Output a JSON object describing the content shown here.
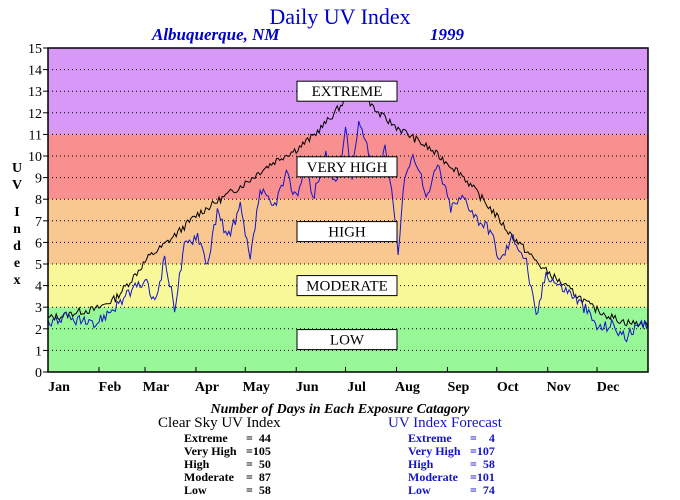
{
  "header": {
    "title": "Daily UV Index",
    "location": "Albuquerque, NM",
    "year": "1999"
  },
  "colors": {
    "extreme": "#d898f8",
    "very_high": "#f89090",
    "high": "#f8c890",
    "moderate": "#f8f898",
    "low": "#98f898",
    "clear_sky_line": "#000000",
    "forecast_line": "#1414c8",
    "title": "#0000cc"
  },
  "chart_data": {
    "type": "line",
    "title": "Daily UV Index",
    "ylabel": "UV Index",
    "ylim": [
      0,
      15
    ],
    "yticks": [
      "0",
      "1",
      "2",
      "3",
      "4",
      "5",
      "6",
      "7",
      "8",
      "9",
      "10",
      "11",
      "12",
      "13",
      "14",
      "15"
    ],
    "xlim": [
      1,
      366
    ],
    "month_ticks": [
      "Jan",
      "Feb",
      "Mar",
      "Apr",
      "May",
      "Jun",
      "Jul",
      "Aug",
      "Sep",
      "Oct",
      "Nov",
      "Dec"
    ],
    "grid": "horizontal dotted",
    "bands": [
      {
        "label": "LOW",
        "from": 0,
        "to": 3,
        "color": "#98f898"
      },
      {
        "label": "MODERATE",
        "from": 3,
        "to": 5,
        "color": "#f8f898"
      },
      {
        "label": "HIGH",
        "from": 5,
        "to": 8,
        "color": "#f8c890"
      },
      {
        "label": "VERY HIGH",
        "from": 8,
        "to": 11,
        "color": "#f89090"
      },
      {
        "label": "EXTREME",
        "from": 11,
        "to": 15,
        "color": "#d898f8"
      }
    ],
    "series": [
      {
        "name": "Clear Sky UV Index",
        "color": "#000000",
        "points": [
          [
            1,
            2.5
          ],
          [
            10,
            2.6
          ],
          [
            20,
            2.8
          ],
          [
            30,
            2.9
          ],
          [
            42,
            3.4
          ],
          [
            52,
            4.3
          ],
          [
            62,
            5.3
          ],
          [
            72,
            5.9
          ],
          [
            82,
            6.6
          ],
          [
            92,
            7.3
          ],
          [
            102,
            7.8
          ],
          [
            112,
            8.3
          ],
          [
            122,
            8.8
          ],
          [
            132,
            9.4
          ],
          [
            142,
            9.9
          ],
          [
            152,
            10.3
          ],
          [
            162,
            10.9
          ],
          [
            172,
            11.7
          ],
          [
            182,
            12.6
          ],
          [
            187,
            13.2
          ],
          [
            192,
            13.1
          ],
          [
            200,
            12.1
          ],
          [
            210,
            11.5
          ],
          [
            220,
            11.0
          ],
          [
            232,
            10.4
          ],
          [
            242,
            9.8
          ],
          [
            252,
            9.2
          ],
          [
            262,
            8.3
          ],
          [
            272,
            7.4
          ],
          [
            282,
            6.4
          ],
          [
            292,
            5.6
          ],
          [
            302,
            4.8
          ],
          [
            312,
            4.2
          ],
          [
            322,
            3.6
          ],
          [
            332,
            3.0
          ],
          [
            342,
            2.6
          ],
          [
            352,
            2.3
          ],
          [
            365,
            2.2
          ]
        ]
      },
      {
        "name": "UV Index Forecast",
        "color": "#1414c8",
        "points": [
          [
            1,
            2.3
          ],
          [
            10,
            2.5
          ],
          [
            20,
            2.4
          ],
          [
            28,
            2.1
          ],
          [
            50,
            3.6
          ],
          [
            60,
            4.2
          ],
          [
            66,
            3.2
          ],
          [
            72,
            5.2
          ],
          [
            78,
            3.0
          ],
          [
            84,
            5.8
          ],
          [
            92,
            6.4
          ],
          [
            98,
            5.0
          ],
          [
            104,
            7.4
          ],
          [
            110,
            6.2
          ],
          [
            118,
            7.6
          ],
          [
            124,
            5.1
          ],
          [
            130,
            8.4
          ],
          [
            138,
            7.6
          ],
          [
            146,
            9.1
          ],
          [
            152,
            8.1
          ],
          [
            158,
            9.6
          ],
          [
            162,
            8.0
          ],
          [
            170,
            10.1
          ],
          [
            176,
            8.6
          ],
          [
            182,
            11.2
          ],
          [
            186,
            9.1
          ],
          [
            190,
            11.6
          ],
          [
            196,
            10.1
          ],
          [
            202,
            9.1
          ],
          [
            206,
            10.6
          ],
          [
            210,
            8.6
          ],
          [
            214,
            5.6
          ],
          [
            218,
            9.1
          ],
          [
            224,
            10.0
          ],
          [
            232,
            8.1
          ],
          [
            238,
            9.6
          ],
          [
            246,
            7.6
          ],
          [
            254,
            8.1
          ],
          [
            262,
            7.1
          ],
          [
            270,
            6.6
          ],
          [
            276,
            5.1
          ],
          [
            284,
            6.3
          ],
          [
            292,
            5.1
          ],
          [
            298,
            2.5
          ],
          [
            304,
            4.6
          ],
          [
            312,
            4.0
          ],
          [
            320,
            3.6
          ],
          [
            328,
            2.9
          ],
          [
            336,
            2.0
          ],
          [
            344,
            2.2
          ],
          [
            352,
            1.6
          ],
          [
            358,
            1.9
          ],
          [
            365,
            2.3
          ]
        ]
      }
    ]
  },
  "stats": {
    "title": "Number of Days in Each Exposure Catagory",
    "clear_sky": {
      "heading": "Clear Sky UV Index",
      "rows": [
        {
          "label": "Extreme",
          "value": "=  44"
        },
        {
          "label": "Very High",
          "value": "=105"
        },
        {
          "label": "High",
          "value": "=  50"
        },
        {
          "label": "Moderate",
          "value": "=  87"
        },
        {
          "label": "Low",
          "value": "=  58"
        }
      ]
    },
    "forecast": {
      "heading": "UV Index Forecast",
      "rows": [
        {
          "label": "Extreme",
          "value": "=    4"
        },
        {
          "label": "Very High",
          "value": "=107"
        },
        {
          "label": "High",
          "value": "=  58"
        },
        {
          "label": "Moderate",
          "value": "=101"
        },
        {
          "label": "Low",
          "value": "=  74"
        }
      ]
    }
  }
}
